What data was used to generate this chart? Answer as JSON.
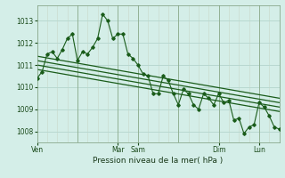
{
  "xlabel": "Pression niveau de la mer( hPa )",
  "bg_color": "#d4eee8",
  "grid_color": "#b8d8d0",
  "line_color": "#1a5c1a",
  "ylim": [
    1007.5,
    1013.7
  ],
  "yticks": [
    1008,
    1009,
    1010,
    1011,
    1012,
    1013
  ],
  "xlim": [
    0,
    288
  ],
  "series1_x": [
    0,
    6,
    12,
    18,
    24,
    30,
    36,
    42,
    48,
    54,
    60,
    66,
    72,
    78,
    84,
    90,
    96,
    102,
    108,
    114,
    120,
    126,
    132,
    138,
    144,
    150,
    156,
    162,
    168,
    174,
    180,
    186,
    192,
    198,
    204,
    210,
    216,
    222,
    228,
    234,
    240,
    246,
    252,
    258,
    264,
    270,
    276,
    282,
    288
  ],
  "series1_y": [
    1010.4,
    1010.7,
    1011.5,
    1011.6,
    1011.3,
    1011.7,
    1012.2,
    1012.4,
    1011.2,
    1011.6,
    1011.5,
    1011.8,
    1012.2,
    1013.3,
    1013.0,
    1012.2,
    1012.4,
    1012.4,
    1011.5,
    1011.3,
    1011.0,
    1010.6,
    1010.5,
    1009.7,
    1009.7,
    1010.5,
    1010.3,
    1009.7,
    1009.2,
    1009.9,
    1009.7,
    1009.2,
    1009.0,
    1009.7,
    1009.5,
    1009.2,
    1009.7,
    1009.3,
    1009.4,
    1008.5,
    1008.6,
    1007.9,
    1008.2,
    1008.3,
    1009.3,
    1009.1,
    1008.7,
    1008.2,
    1008.1
  ],
  "trend_lines": [
    {
      "x": [
        0,
        288
      ],
      "y": [
        1011.4,
        1009.5
      ]
    },
    {
      "x": [
        0,
        288
      ],
      "y": [
        1011.2,
        1009.3
      ]
    },
    {
      "x": [
        0,
        288
      ],
      "y": [
        1011.0,
        1009.1
      ]
    },
    {
      "x": [
        0,
        288
      ],
      "y": [
        1010.8,
        1008.9
      ]
    }
  ],
  "vlines": [
    48,
    96,
    120,
    168,
    216,
    264,
    288
  ],
  "x_tick_positions": [
    0,
    96,
    120,
    216,
    264
  ],
  "x_tick_labels": [
    "Ven",
    "Mar",
    "Sam",
    "Dim",
    "Lun"
  ]
}
